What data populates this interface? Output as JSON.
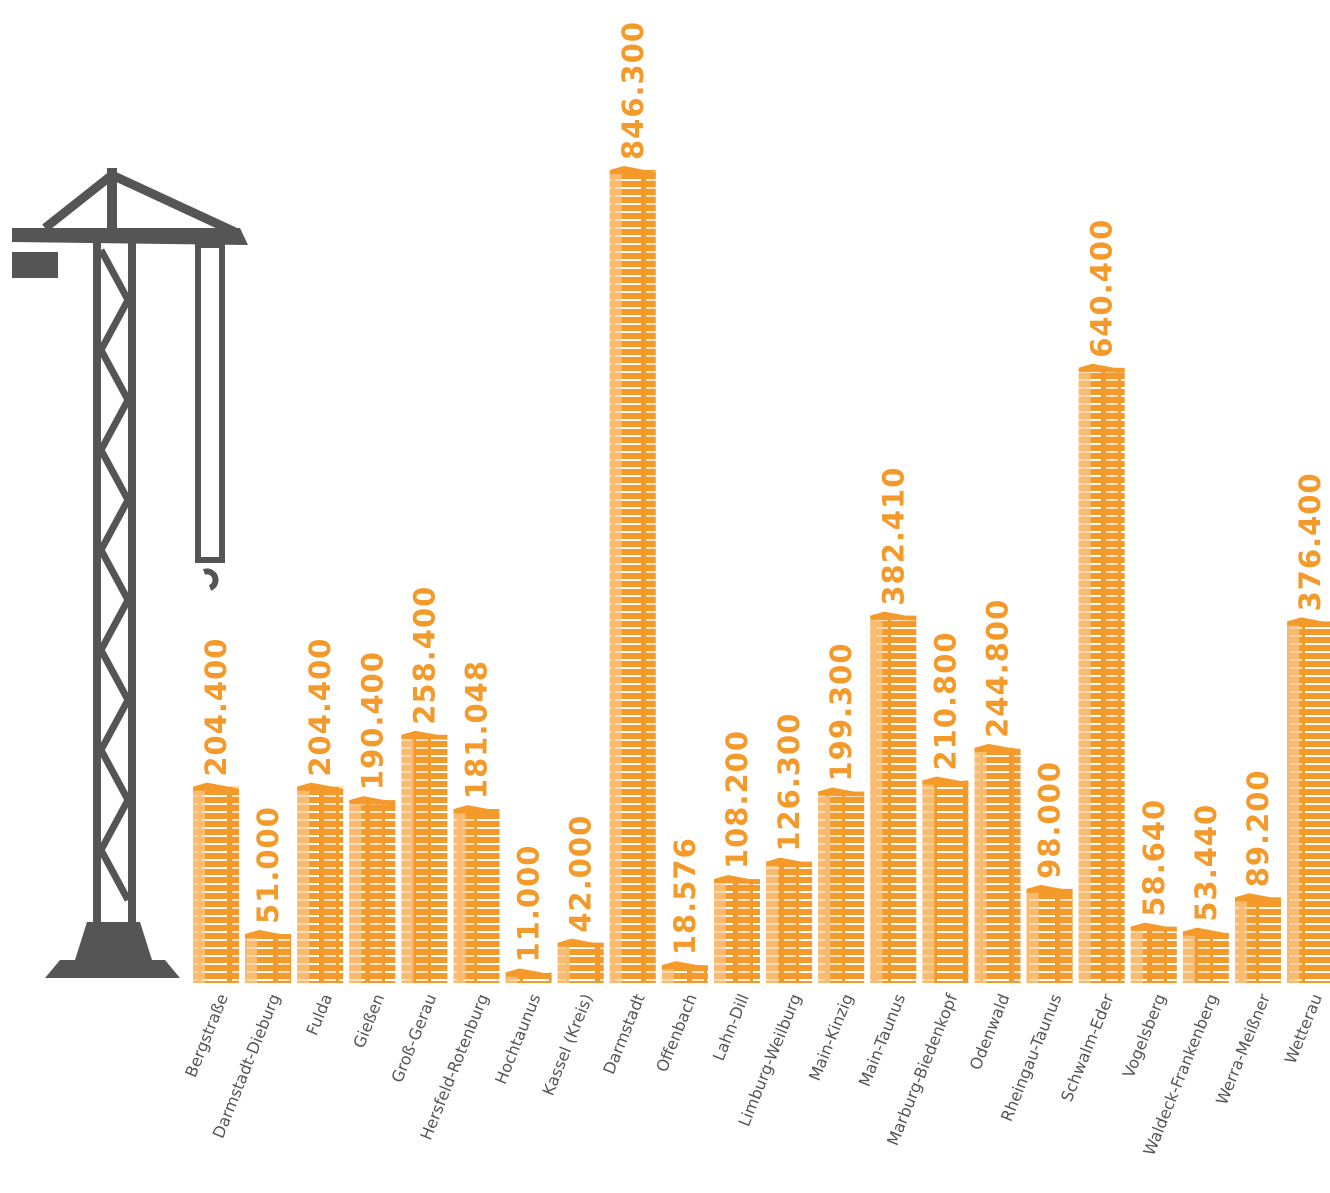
{
  "chart_data": {
    "type": "bar",
    "color": "#f39a2b",
    "categories": [
      "Bergstraße",
      "Darmstadt-Dieburg",
      "Fulda",
      "Gießen",
      "Groß-Gerau",
      "Hersfeld-Rotenburg",
      "Hochtaunus",
      "Kassel (Kreis)",
      "Darmstadt",
      "Offenbach",
      "Lahn-Dill",
      "Limburg-Weilburg",
      "Main-Kinzig",
      "Main-Taunus",
      "Marburg-Biedenkopf",
      "Odenwald",
      "Rheingau-Taunus",
      "Schwalm-Eder",
      "Vogelsberg",
      "Waldeck-Frankenberg",
      "Werra-Meißner",
      "Wetterau"
    ],
    "values": [
      204400,
      51000,
      204400,
      190400,
      258400,
      181048,
      11000,
      42000,
      846300,
      18576,
      108200,
      126300,
      199300,
      382410,
      210800,
      244800,
      98000,
      640400,
      58640,
      53440,
      89200,
      376400
    ],
    "value_labels": [
      "204.400",
      "51.000",
      "204.400",
      "190.400",
      "258.400",
      "181.048",
      "11.000",
      "42.000",
      "846.300",
      "18.576",
      "108.200",
      "126.300",
      "199.300",
      "382.410",
      "210.800",
      "244.800",
      "98.000",
      "640.400",
      "58.640",
      "53.440",
      "89.200",
      "376.400"
    ]
  }
}
